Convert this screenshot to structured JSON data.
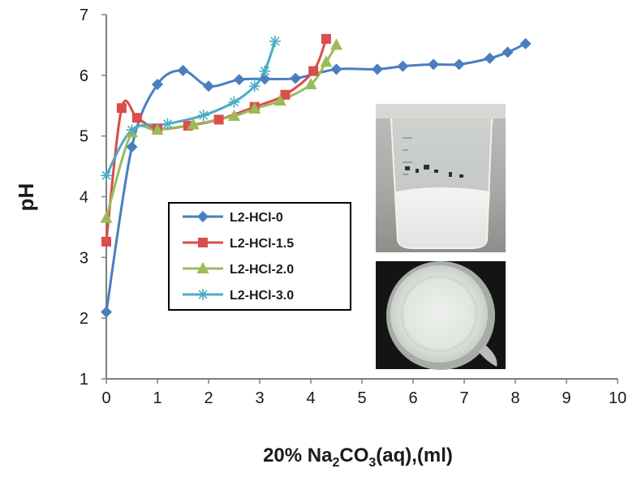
{
  "chart_data": {
    "type": "line",
    "title": "",
    "xlabel": {
      "prefix": "20% Na",
      "sub1": "2",
      "mid": "CO",
      "sub2": "3",
      "suffix": "(aq),(ml)"
    },
    "ylabel": "pH",
    "xlim": [
      0,
      10
    ],
    "ylim": [
      1,
      7
    ],
    "xticks": [
      0,
      1,
      2,
      3,
      4,
      5,
      6,
      7,
      8,
      9,
      10
    ],
    "yticks": [
      1,
      2,
      3,
      4,
      5,
      6,
      7
    ],
    "grid": false,
    "legend_position": "center-left",
    "series": [
      {
        "name": "L2-HCl-0",
        "color": "#4a7ebf",
        "marker": "diamond",
        "x": [
          0,
          0.5,
          1.0,
          1.5,
          2.0,
          2.6,
          3.1,
          3.7,
          4.5,
          5.3,
          5.8,
          6.4,
          6.9,
          7.5,
          7.85,
          8.2
        ],
        "y": [
          2.1,
          4.82,
          5.85,
          6.08,
          5.82,
          5.93,
          5.94,
          5.95,
          6.1,
          6.1,
          6.15,
          6.18,
          6.18,
          6.28,
          6.38,
          6.52
        ]
      },
      {
        "name": "L2-HCl-1.5",
        "color": "#d94f4a",
        "marker": "square",
        "x": [
          0,
          0.3,
          0.6,
          1.0,
          1.6,
          2.2,
          2.9,
          3.5,
          4.05,
          4.3
        ],
        "y": [
          3.26,
          5.46,
          5.3,
          5.12,
          5.17,
          5.27,
          5.48,
          5.68,
          6.07,
          6.6
        ]
      },
      {
        "name": "L2-HCl-2.0",
        "color": "#9bbb59",
        "marker": "triangle",
        "x": [
          0,
          0.5,
          1.0,
          1.7,
          2.5,
          2.9,
          3.4,
          4.0,
          4.3,
          4.5
        ],
        "y": [
          3.65,
          5.06,
          5.1,
          5.19,
          5.33,
          5.45,
          5.58,
          5.85,
          6.22,
          6.5
        ]
      },
      {
        "name": "L2-HCl-3.0",
        "color": "#4bacc6",
        "marker": "asterisk",
        "x": [
          0,
          0.5,
          1.2,
          1.9,
          2.5,
          2.9,
          3.1,
          3.3
        ],
        "y": [
          4.35,
          5.1,
          5.2,
          5.34,
          5.56,
          5.82,
          6.07,
          6.56
        ]
      }
    ]
  },
  "photos": {
    "beaker_side": "beaker-side-photo",
    "beaker_top": "beaker-top-photo"
  }
}
